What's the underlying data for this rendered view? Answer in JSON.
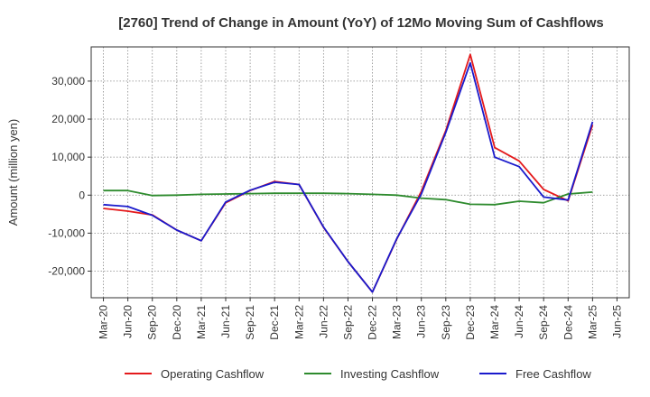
{
  "chart_data": {
    "type": "line",
    "title": "[2760]  Trend of Change in Amount (YoY) of 12Mo Moving Sum of Cashflows",
    "xlabel": "",
    "ylabel": "Amount (million yen)",
    "ylim": [
      -27000,
      39000
    ],
    "yticks": [
      -20000,
      -10000,
      0,
      10000,
      20000,
      30000
    ],
    "ytick_labels": [
      "-20,000",
      "-10,000",
      "0",
      "10,000",
      "20,000",
      "30,000"
    ],
    "xtick_labels": [
      "Mar-20",
      "Jun-20",
      "Sep-20",
      "Dec-20",
      "Mar-21",
      "Jun-21",
      "Sep-21",
      "Dec-21",
      "Mar-22",
      "Jun-22",
      "Sep-22",
      "Dec-22",
      "Mar-23",
      "Jun-23",
      "Sep-23",
      "Dec-23",
      "Mar-24",
      "Jun-24",
      "Sep-24",
      "Dec-24",
      "Mar-25",
      "Jun-25"
    ],
    "grid": true,
    "legend_position": "bottom",
    "series": [
      {
        "name": "Operating Cashflow",
        "color": "#e41a1c",
        "values": [
          -3500,
          -4200,
          -5200,
          -9200,
          -12000,
          -2000,
          1200,
          3600,
          2800,
          -8500,
          -17500,
          -25500,
          -11500,
          1000,
          17000,
          37000,
          12500,
          9000,
          1500,
          -1500,
          18500
        ]
      },
      {
        "name": "Investing Cashflow",
        "color": "#2e8b2e",
        "values": [
          1200,
          1200,
          -100,
          0,
          200,
          300,
          400,
          500,
          500,
          500,
          400,
          200,
          0,
          -800,
          -1200,
          -2400,
          -2500,
          -1600,
          -2000,
          300,
          800
        ]
      },
      {
        "name": "Free Cashflow",
        "color": "#1a1acc",
        "values": [
          -2500,
          -3000,
          -5300,
          -9200,
          -12000,
          -1800,
          1300,
          3400,
          2800,
          -8400,
          -17500,
          -25500,
          -11400,
          300,
          16500,
          34800,
          10000,
          7500,
          -500,
          -1300,
          19300
        ]
      }
    ]
  }
}
